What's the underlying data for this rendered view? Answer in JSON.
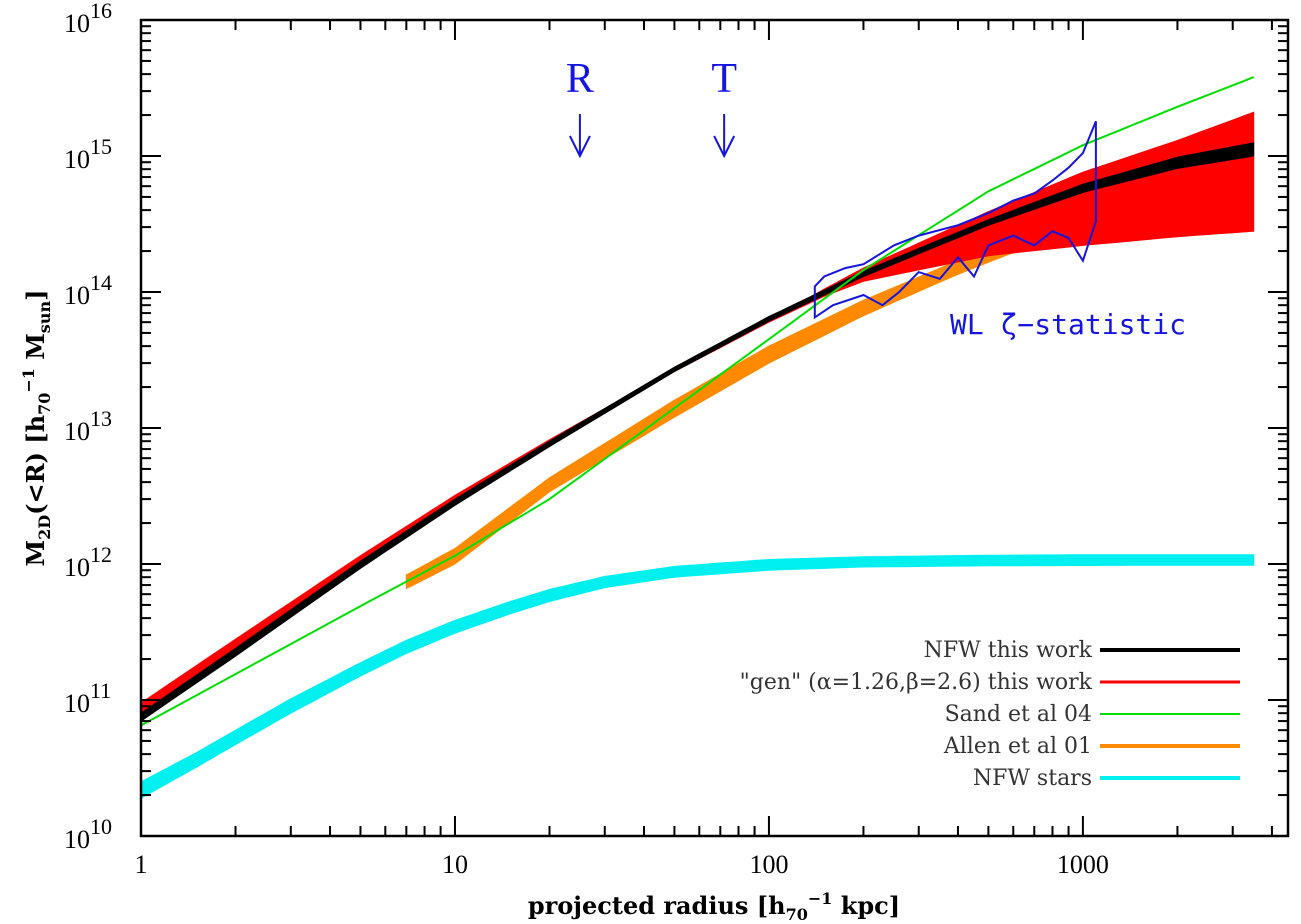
{
  "chart_data": {
    "type": "line",
    "x_scale": "log",
    "y_scale": "log",
    "xlim": [
      1,
      4500
    ],
    "ylim": [
      10000000000.0,
      1e+16
    ],
    "x_ticks": [
      {
        "value": 1,
        "label": "1"
      },
      {
        "value": 10,
        "label": "10"
      },
      {
        "value": 100,
        "label": "100"
      },
      {
        "value": 1000,
        "label": "1000"
      }
    ],
    "y_ticks": [
      {
        "value": 10000000000.0,
        "base": "10",
        "exp": "10"
      },
      {
        "value": 100000000000.0,
        "base": "10",
        "exp": "11"
      },
      {
        "value": 1000000000000.0,
        "base": "10",
        "exp": "12"
      },
      {
        "value": 10000000000000.0,
        "base": "10",
        "exp": "13"
      },
      {
        "value": 100000000000000.0,
        "base": "10",
        "exp": "14"
      },
      {
        "value": 1000000000000000.0,
        "base": "10",
        "exp": "15"
      },
      {
        "value": 1e+16,
        "base": "10",
        "exp": "16"
      }
    ],
    "xlabel": {
      "main": "projected radius   [h",
      "sub": "70",
      "sup": "−1",
      "tail": " kpc]"
    },
    "ylabel": {
      "m": "M",
      "msub": "2D",
      "mid": "(<R)  [h",
      "hsub": "70",
      "sup": "−1",
      "sp": " M",
      "ssub": "sun",
      "end": "]"
    },
    "markers": [
      {
        "label": "R",
        "x": 25
      },
      {
        "label": "T",
        "x": 72
      }
    ],
    "annotation": "WL ζ−statistic",
    "series": [
      {
        "name": "NFW this work",
        "color": "#000000",
        "x": [
          1,
          2,
          5,
          10,
          20,
          50,
          100,
          200,
          500,
          1000,
          2000,
          3500
        ],
        "lower": [
          70000000000.0,
          210000000000.0,
          930000000000.0,
          2700000000000.0,
          7300000000000.0,
          26000000000000.0,
          61000000000000.0,
          130000000000000.0,
          310000000000000.0,
          540000000000000.0,
          810000000000000.0,
          1000000000000000.0
        ],
        "upper": [
          80000000000.0,
          240000000000.0,
          1050000000000.0,
          3000000000000.0,
          8000000000000.0,
          28000000000000.0,
          66000000000000.0,
          142000000000000.0,
          340000000000000.0,
          620000000000000.0,
          980000000000000.0,
          1250000000000000.0
        ]
      },
      {
        "name": "\"gen\" (α=1.26,β=2.6) this work",
        "color": "#ff0000",
        "x": [
          1,
          2,
          5,
          10,
          20,
          50,
          100,
          150,
          200,
          500,
          1000,
          2000,
          3500
        ],
        "lower": [
          70000000000.0,
          220000000000.0,
          1000000000000.0,
          2900000000000.0,
          7500000000000.0,
          26000000000000.0,
          60000000000000.0,
          93000000000000.0,
          120000000000000.0,
          185000000000000.0,
          220000000000000.0,
          255000000000000.0,
          280000000000000.0
        ],
        "upper": [
          95000000000.0,
          280000000000.0,
          1150000000000.0,
          3200000000000.0,
          8200000000000.0,
          27000000000000.0,
          62000000000000.0,
          105000000000000.0,
          150000000000000.0,
          390000000000000.0,
          760000000000000.0,
          1300000000000000.0,
          2100000000000000.0
        ]
      },
      {
        "name": "Sand et al 04",
        "color": "#00e000",
        "x": [
          1,
          2,
          5,
          10,
          20,
          50,
          100,
          200,
          500,
          1000,
          2000,
          3500
        ],
        "y": [
          65000000000.0,
          155000000000.0,
          490000000000.0,
          1150000000000.0,
          3000000000000.0,
          14000000000000.0,
          45000000000000.0,
          145000000000000.0,
          550000000000000.0,
          1200000000000000.0,
          2300000000000000.0,
          3800000000000000.0
        ]
      },
      {
        "name": "Allen et al 01",
        "color": "#ff8a00",
        "x": [
          7,
          10,
          20,
          50,
          100,
          200,
          400,
          600
        ],
        "lower": [
          660000000000.0,
          1000000000000.0,
          3400000000000.0,
          12000000000000.0,
          30000000000000.0,
          67000000000000.0,
          135000000000000.0,
          195000000000000.0
        ],
        "upper": [
          830000000000.0,
          1300000000000.0,
          4300000000000.0,
          16000000000000.0,
          40000000000000.0,
          87000000000000.0,
          170000000000000.0,
          240000000000000.0
        ]
      },
      {
        "name": "NFW stars",
        "color": "#00f0f0",
        "x": [
          1,
          1.5,
          2,
          3,
          5,
          7,
          10,
          15,
          20,
          30,
          50,
          100,
          200,
          500,
          1000,
          2000,
          3500
        ],
        "lower": [
          19000000000.0,
          32000000000.0,
          47000000000.0,
          80000000000.0,
          150000000000.0,
          220000000000.0,
          310000000000.0,
          430000000000.0,
          530000000000.0,
          670000000000.0,
          800000000000.0,
          900000000000.0,
          950000000000.0,
          970000000000.0,
          975000000000.0,
          980000000000.0,
          980000000000.0
        ],
        "upper": [
          25000000000.0,
          41000000000.0,
          60000000000.0,
          102000000000.0,
          188000000000.0,
          275000000000.0,
          385000000000.0,
          530000000000.0,
          650000000000.0,
          810000000000.0,
          960000000000.0,
          1080000000000.0,
          1130000000000.0,
          1160000000000.0,
          1170000000000.0,
          1170000000000.0,
          1170000000000.0
        ]
      },
      {
        "name": "WL ζ-statistic",
        "color": "#1515e0",
        "x_upper": [
          140,
          150,
          175,
          200,
          250,
          300,
          400,
          500,
          600,
          700,
          800,
          900,
          1000,
          1100
        ],
        "upper": [
          110000000000000.0,
          130000000000000.0,
          150000000000000.0,
          160000000000000.0,
          220000000000000.0,
          260000000000000.0,
          310000000000000.0,
          380000000000000.0,
          470000000000000.0,
          530000000000000.0,
          660000000000000.0,
          820000000000000.0,
          1050000000000000.0,
          1800000000000000.0
        ],
        "x_lower": [
          140,
          160,
          200,
          230,
          260,
          300,
          350,
          400,
          450,
          500,
          600,
          700,
          800,
          900,
          1000,
          1100
        ],
        "lower": [
          65000000000000.0,
          80000000000000.0,
          95000000000000.0,
          80000000000000.0,
          100000000000000.0,
          140000000000000.0,
          125000000000000.0,
          180000000000000.0,
          130000000000000.0,
          220000000000000.0,
          260000000000000.0,
          220000000000000.0,
          280000000000000.0,
          250000000000000.0,
          170000000000000.0,
          330000000000000.0
        ]
      }
    ],
    "legend": {
      "placement": "bottom-right",
      "entries": [
        {
          "label": "NFW this work",
          "color": "#000000"
        },
        {
          "label": "\"gen\" (α=1.26,β=2.6) this work",
          "color": "#ff0000"
        },
        {
          "label": "Sand et al 04",
          "color": "#00e000"
        },
        {
          "label": "Allen et al 01",
          "color": "#ff8a00"
        },
        {
          "label": "NFW stars",
          "color": "#00f0f0"
        }
      ]
    }
  }
}
